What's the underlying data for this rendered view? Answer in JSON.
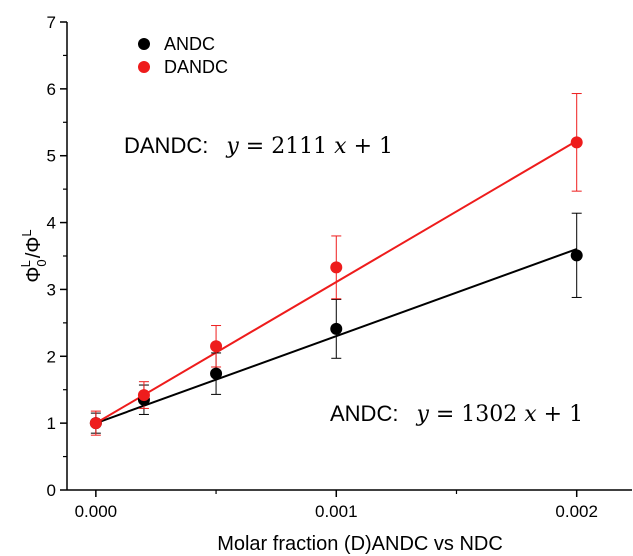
{
  "chart_data": {
    "type": "scatter",
    "xlabel": "Molar fraction (D)ANDC vs NDC",
    "ylabel": "Φ₀ᴸ/Φᴸ",
    "ylabel_parts": {
      "main": "Φ",
      "sub": "0",
      "sup": "L",
      "slash": "/Φ",
      "sup2": "L"
    },
    "xlim": [
      -0.00012,
      0.00223
    ],
    "ylim": [
      0,
      7
    ],
    "xticks": [
      0.0,
      0.001,
      0.002
    ],
    "xtick_labels": [
      "0.000",
      "0.001",
      "0.002"
    ],
    "yticks": [
      0,
      1,
      2,
      3,
      4,
      5,
      6,
      7
    ],
    "ytick_labels": [
      "0",
      "1",
      "2",
      "3",
      "4",
      "5",
      "6",
      "7"
    ],
    "grid": false,
    "legend_position": "top-left",
    "series": [
      {
        "name": "ANDC",
        "color": "#000000",
        "x": [
          0.0,
          0.0002,
          0.0005,
          0.001,
          0.002
        ],
        "y": [
          1.0,
          1.35,
          1.74,
          2.41,
          3.51
        ],
        "yerr": [
          0.15,
          0.22,
          0.31,
          0.44,
          0.63
        ],
        "fit": {
          "slope": 1302,
          "intercept": 1,
          "x_range": [
            0.0,
            0.002
          ]
        }
      },
      {
        "name": "DANDC",
        "color": "#ee1c1c",
        "x": [
          0.0,
          0.0002,
          0.0005,
          0.001,
          0.002
        ],
        "y": [
          1.0,
          1.42,
          2.15,
          3.33,
          5.2
        ],
        "yerr": [
          0.18,
          0.2,
          0.31,
          0.47,
          0.73
        ],
        "fit": {
          "slope": 2111,
          "intercept": 1,
          "x_range": [
            0.0,
            0.002
          ]
        }
      }
    ],
    "annotations": [
      {
        "name": "dandc-equation",
        "prefix": "DANDC:",
        "math": "𝑦 = 2111 𝑥 + 1"
      },
      {
        "name": "andc-equation",
        "prefix": "ANDC:",
        "math": "𝑦 = 1302 𝑥 + 1"
      }
    ]
  }
}
